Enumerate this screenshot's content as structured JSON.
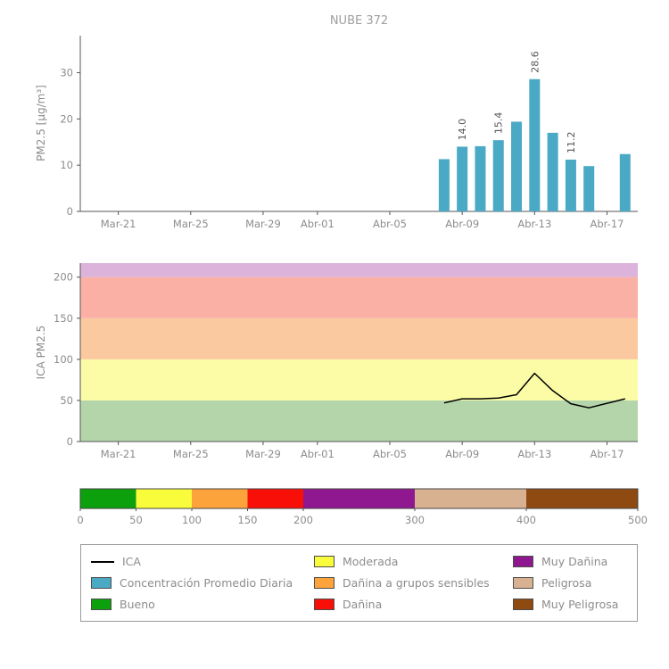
{
  "figure_title": "NUBE 372",
  "colors": {
    "bar_teal": "#4aa9c4",
    "good_green": "#0ca10c",
    "moderate_yellow": "#f9fc3a",
    "sensitive_orange": "#fca33c",
    "harmful_red": "#f80f08",
    "very_harmful_purple": "#8f178f",
    "dangerous_tan": "#d8b290",
    "very_dangerous_brown": "#8e4a11",
    "ica_line_black": "#000000"
  },
  "chart_data": [
    {
      "type": "bar",
      "title": "NUBE 372",
      "xlabel": "",
      "ylabel": "PM2.5 [μg/m³]",
      "ylim": [
        0,
        38
      ],
      "yticks": [
        0,
        10,
        20,
        30
      ],
      "xlim_days": [
        -2.1,
        28.7
      ],
      "xticks": [
        {
          "day": 0,
          "label": "Mar-21"
        },
        {
          "day": 4,
          "label": "Mar-25"
        },
        {
          "day": 8,
          "label": "Mar-29"
        },
        {
          "day": 11,
          "label": "Abr-01"
        },
        {
          "day": 15,
          "label": "Abr-05"
        },
        {
          "day": 19,
          "label": "Abr-09"
        },
        {
          "day": 23,
          "label": "Abr-13"
        },
        {
          "day": 27,
          "label": "Abr-17"
        }
      ],
      "bar_color": "#4aa9c4",
      "series_name": "Concentración Promedio Diaria",
      "bars": [
        {
          "date": "Abr-08",
          "day": 18,
          "value": 11.3
        },
        {
          "date": "Abr-09",
          "day": 19,
          "value": 14.0,
          "label": "14.0"
        },
        {
          "date": "Abr-10",
          "day": 20,
          "value": 14.1
        },
        {
          "date": "Abr-11",
          "day": 21,
          "value": 15.4,
          "label": "15.4"
        },
        {
          "date": "Abr-12",
          "day": 22,
          "value": 19.4
        },
        {
          "date": "Abr-13",
          "day": 23,
          "value": 28.6,
          "label": "28.6"
        },
        {
          "date": "Abr-14",
          "day": 24,
          "value": 17.0
        },
        {
          "date": "Abr-15",
          "day": 25,
          "value": 11.2,
          "label": "11.2"
        },
        {
          "date": "Abr-16",
          "day": 26,
          "value": 9.8
        },
        {
          "date": "Abr-18",
          "day": 28,
          "value": 12.4
        }
      ]
    },
    {
      "type": "line",
      "title": "",
      "xlabel": "",
      "ylabel": "ICA PM2.5",
      "ylim": [
        0,
        217
      ],
      "yticks": [
        0,
        50,
        100,
        150,
        200
      ],
      "xlim_days": [
        -2.1,
        28.7
      ],
      "xticks": [
        {
          "day": 0,
          "label": "Mar-21"
        },
        {
          "day": 4,
          "label": "Mar-25"
        },
        {
          "day": 8,
          "label": "Mar-29"
        },
        {
          "day": 11,
          "label": "Abr-01"
        },
        {
          "day": 15,
          "label": "Abr-05"
        },
        {
          "day": 19,
          "label": "Abr-09"
        },
        {
          "day": 23,
          "label": "Abr-13"
        },
        {
          "day": 27,
          "label": "Abr-17"
        }
      ],
      "line_color": "#000000",
      "series_name": "ICA",
      "bands": [
        {
          "from": 0,
          "to": 50,
          "color": "#b3d5a9",
          "name": "Bueno"
        },
        {
          "from": 50,
          "to": 100,
          "color": "#fbfca5",
          "name": "Moderada"
        },
        {
          "from": 100,
          "to": 150,
          "color": "#fbc9a0",
          "name": "Dañina a grupos sensibles"
        },
        {
          "from": 150,
          "to": 200,
          "color": "#fab0a4",
          "name": "Dañina"
        },
        {
          "from": 200,
          "to": 217,
          "color": "#dcb3da",
          "name": "Muy Dañina"
        }
      ],
      "points": [
        {
          "date": "Abr-08",
          "day": 18,
          "value": 47
        },
        {
          "date": "Abr-09",
          "day": 19,
          "value": 52
        },
        {
          "date": "Abr-10",
          "day": 20,
          "value": 52
        },
        {
          "date": "Abr-11",
          "day": 21,
          "value": 53
        },
        {
          "date": "Abr-12",
          "day": 22,
          "value": 57
        },
        {
          "date": "Abr-13",
          "day": 23,
          "value": 83
        },
        {
          "date": "Abr-14",
          "day": 24,
          "value": 62
        },
        {
          "date": "Abr-15",
          "day": 25,
          "value": 46
        },
        {
          "date": "Abr-16",
          "day": 26,
          "value": 41
        },
        {
          "date": "Abr-18",
          "day": 28,
          "value": 52
        }
      ]
    }
  ],
  "colorbar": {
    "min": 0,
    "max": 500,
    "ticks": [
      0,
      50,
      100,
      150,
      200,
      300,
      400,
      500
    ],
    "segments": [
      {
        "from": 0,
        "to": 50,
        "color": "#0ca10c",
        "name": "Bueno"
      },
      {
        "from": 50,
        "to": 100,
        "color": "#f9fc3a",
        "name": "Moderada"
      },
      {
        "from": 100,
        "to": 150,
        "color": "#fca33c",
        "name": "Dañina a grupos sensibles"
      },
      {
        "from": 150,
        "to": 200,
        "color": "#f80f08",
        "name": "Dañina"
      },
      {
        "from": 200,
        "to": 300,
        "color": "#8f178f",
        "name": "Muy Dañina"
      },
      {
        "from": 300,
        "to": 400,
        "color": "#d8b290",
        "name": "Peligrosa"
      },
      {
        "from": 400,
        "to": 500,
        "color": "#8e4a11",
        "name": "Muy Peligrosa"
      }
    ]
  },
  "legend": {
    "items": [
      {
        "label": "ICA",
        "type": "line",
        "color": "#000000"
      },
      {
        "label": "Moderada",
        "type": "patch",
        "color": "#f9fc3a"
      },
      {
        "label": "Muy Dañina",
        "type": "patch",
        "color": "#8f178f"
      },
      {
        "label": "Concentración Promedio Diaria",
        "type": "patch",
        "color": "#4aa9c4"
      },
      {
        "label": "Dañina a grupos sensibles",
        "type": "patch",
        "color": "#fca33c"
      },
      {
        "label": "Peligrosa",
        "type": "patch",
        "color": "#d8b290"
      },
      {
        "label": "Bueno",
        "type": "patch",
        "color": "#0ca10c"
      },
      {
        "label": "Dañina",
        "type": "patch",
        "color": "#f80f08"
      },
      {
        "label": "Muy Peligrosa",
        "type": "patch",
        "color": "#8e4a11"
      }
    ]
  }
}
